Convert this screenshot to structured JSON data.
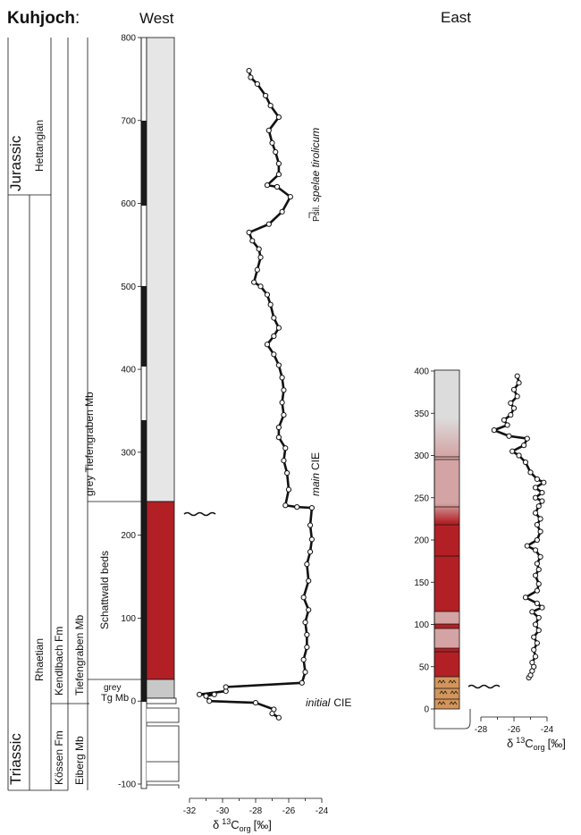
{
  "header": {
    "locality": "Kuhjoch",
    "colon": ":",
    "west": "West",
    "east": "East"
  },
  "strat": {
    "system_triassic": "Triassic",
    "system_jurassic": "Jurassic",
    "stage_rhaetian": "Rhaetian",
    "stage_hettangian": "Hettangian",
    "fm_kossen": "Kössen Fm",
    "fm_kendlbach": "Kendlbach Fm",
    "mb_eiberg": "Eiberg Mb",
    "mb_tiefengraben": "Tiefengraben Mb",
    "unit_grey_tiefengraben": "grey Tiefengraben Mb",
    "unit_schattwald": "Schattwald beds",
    "unit_grey_small": "grey",
    "unit_tg": "Tg Mb"
  },
  "annotations": {
    "psil_prefix": "Psil.",
    "psil_species": "spelae tirolicum",
    "main_word": "main",
    "initial_word": "initial",
    "cie": "CIE"
  },
  "colors": {
    "grey_unit": "#e6e6e6",
    "grey_tg": "#c8c8c8",
    "schattwald_red": "#b22025",
    "pink": "#d4a3a3",
    "orange": "#d2955a",
    "black": "#111111"
  },
  "chart_data": [
    {
      "type": "line",
      "panel": "West",
      "y_axis": {
        "range": [
          -100,
          800
        ],
        "ticks": [
          "-100",
          "0",
          "100",
          "200",
          "300",
          "400",
          "500",
          "600",
          "700",
          "800"
        ]
      },
      "x_axis": {
        "range": [
          -32,
          -24
        ],
        "ticks": [
          "-32",
          "-30",
          "-28",
          "-26",
          "-24"
        ],
        "label_main": "δ",
        "label_sup": "13",
        "label_c": "C",
        "label_sub": "org",
        "label_unit": "[‰]"
      },
      "series": [
        {
          "points": [
            [
              -26.6,
              -20
            ],
            [
              -27.0,
              -15
            ],
            [
              -26.9,
              -10
            ],
            [
              -28.0,
              -2
            ],
            [
              -30.8,
              0
            ],
            [
              -31.0,
              6
            ],
            [
              -30.5,
              8
            ],
            [
              -31.4,
              8
            ],
            [
              -29.8,
              12
            ],
            [
              -29.8,
              17
            ],
            [
              -25.2,
              22
            ],
            [
              -25.0,
              35
            ],
            [
              -25.1,
              50
            ],
            [
              -24.9,
              65
            ],
            [
              -24.9,
              80
            ],
            [
              -25.0,
              95
            ],
            [
              -24.8,
              110
            ],
            [
              -25.1,
              125
            ],
            [
              -24.8,
              145
            ],
            [
              -24.9,
              165
            ],
            [
              -24.7,
              180
            ],
            [
              -24.6,
              195
            ],
            [
              -24.7,
              212
            ],
            [
              -24.6,
              233
            ],
            [
              -25.5,
              234
            ],
            [
              -26.2,
              236
            ],
            [
              -26.0,
              255
            ],
            [
              -26.1,
              275
            ],
            [
              -26.3,
              290
            ],
            [
              -26.2,
              305
            ],
            [
              -26.6,
              318
            ],
            [
              -26.6,
              330
            ],
            [
              -26.3,
              345
            ],
            [
              -26.4,
              360
            ],
            [
              -26.3,
              375
            ],
            [
              -26.4,
              390
            ],
            [
              -26.6,
              405
            ],
            [
              -26.9,
              418
            ],
            [
              -27.3,
              430
            ],
            [
              -26.9,
              440
            ],
            [
              -26.6,
              450
            ],
            [
              -26.9,
              462
            ],
            [
              -27.1,
              478
            ],
            [
              -27.3,
              490
            ],
            [
              -27.7,
              500
            ],
            [
              -28.1,
              505
            ],
            [
              -27.9,
              520
            ],
            [
              -27.7,
              535
            ],
            [
              -27.8,
              545
            ],
            [
              -28.2,
              555
            ],
            [
              -28.4,
              565
            ],
            [
              -27.2,
              575
            ],
            [
              -26.4,
              590
            ],
            [
              -25.9,
              608
            ],
            [
              -26.7,
              620
            ],
            [
              -27.3,
              622
            ],
            [
              -26.6,
              635
            ],
            [
              -26.6,
              648
            ],
            [
              -26.8,
              662
            ],
            [
              -27.0,
              673
            ],
            [
              -27.2,
              688
            ],
            [
              -26.6,
              704
            ],
            [
              -27.1,
              718
            ],
            [
              -27.4,
              730
            ],
            [
              -27.9,
              744
            ],
            [
              -28.3,
              752
            ],
            [
              -28.4,
              760
            ]
          ]
        }
      ]
    },
    {
      "type": "line",
      "panel": "East",
      "y_axis": {
        "range": [
          0,
          400
        ],
        "ticks": [
          "0",
          "50",
          "100",
          "150",
          "200",
          "250",
          "300",
          "350",
          "400"
        ]
      },
      "x_axis": {
        "range": [
          -28,
          -24
        ],
        "ticks": [
          "-28",
          "-26",
          "-24"
        ],
        "label_main": "δ",
        "label_sup": "13",
        "label_c": "C",
        "label_sub": "org",
        "label_unit": "[‰]"
      },
      "series": [
        {
          "points": [
            [
              -25.1,
              37
            ],
            [
              -25.0,
              40
            ],
            [
              -24.9,
              45
            ],
            [
              -24.8,
              50
            ],
            [
              -24.9,
              55
            ],
            [
              -24.7,
              62
            ],
            [
              -24.8,
              70
            ],
            [
              -24.6,
              78
            ],
            [
              -24.8,
              85
            ],
            [
              -24.5,
              93
            ],
            [
              -24.7,
              100
            ],
            [
              -24.5,
              108
            ],
            [
              -24.9,
              115
            ],
            [
              -24.3,
              120
            ],
            [
              -24.6,
              125
            ],
            [
              -25.3,
              132
            ],
            [
              -24.6,
              140
            ],
            [
              -24.5,
              148
            ],
            [
              -24.7,
              158
            ],
            [
              -24.5,
              165
            ],
            [
              -24.6,
              172
            ],
            [
              -24.4,
              180
            ],
            [
              -24.7,
              188
            ],
            [
              -25.2,
              193
            ],
            [
              -24.6,
              200
            ],
            [
              -24.4,
              210
            ],
            [
              -24.6,
              218
            ],
            [
              -24.4,
              225
            ],
            [
              -24.7,
              232
            ],
            [
              -24.5,
              240
            ],
            [
              -24.3,
              246
            ],
            [
              -24.7,
              250
            ],
            [
              -24.3,
              256
            ],
            [
              -24.7,
              262
            ],
            [
              -24.2,
              268
            ],
            [
              -24.6,
              272
            ],
            [
              -25.0,
              280
            ],
            [
              -25.3,
              292
            ],
            [
              -25.7,
              300
            ],
            [
              -26.1,
              305
            ],
            [
              -25.4,
              312
            ],
            [
              -25.2,
              320
            ],
            [
              -26.3,
              323
            ],
            [
              -27.2,
              330
            ],
            [
              -26.4,
              336
            ],
            [
              -26.6,
              342
            ],
            [
              -26.2,
              348
            ],
            [
              -26.0,
              356
            ],
            [
              -26.2,
              362
            ],
            [
              -25.8,
              370
            ],
            [
              -26.0,
              378
            ],
            [
              -25.7,
              386
            ],
            [
              -25.8,
              394
            ]
          ]
        }
      ]
    }
  ]
}
